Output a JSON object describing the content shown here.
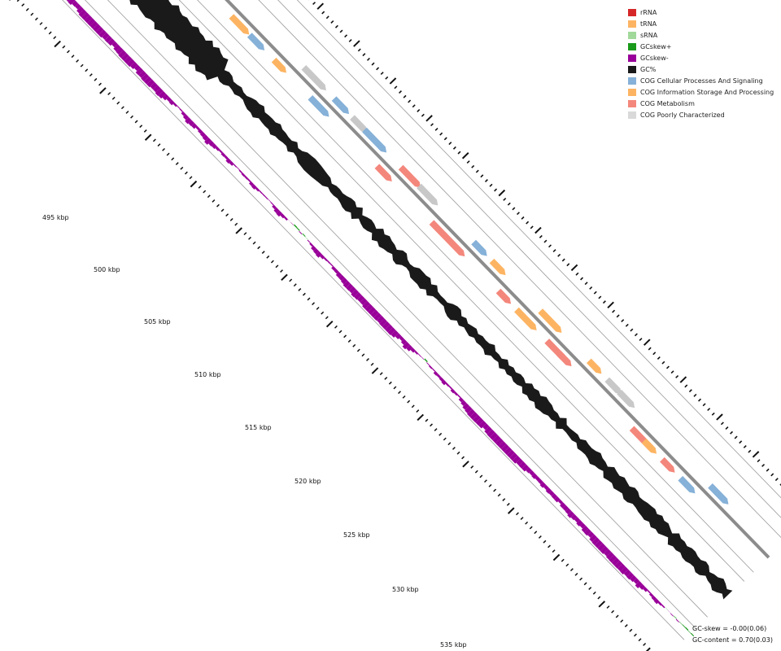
{
  "legend": [
    {
      "label": "rRNA",
      "color": "#d62728"
    },
    {
      "label": "tRNA",
      "color": "#fdb462"
    },
    {
      "label": "sRNA",
      "color": "#a1d99b"
    },
    {
      "label": "GCskew+",
      "color": "#1a9a1a"
    },
    {
      "label": "GCskew-",
      "color": "#990099"
    },
    {
      "label": "GC%",
      "color": "#1a1a1a"
    },
    {
      "label": "COG Cellular Processes And Signaling",
      "color": "#86b1d8"
    },
    {
      "label": "COG Information Storage And Processing",
      "color": "#fdb462"
    },
    {
      "label": "COG Metabolism",
      "color": "#f4877c"
    },
    {
      "label": "COG Poorly Characterized",
      "color": "#d9d9d9"
    }
  ],
  "ticks": [
    "495 kbp",
    "500 kbp",
    "505 kbp",
    "510 kbp",
    "515 kbp",
    "520 kbp",
    "525 kbp",
    "530 kbp",
    "535 kbp"
  ],
  "stats": {
    "gc_skew": "GC-skew = -0.00(0.06)",
    "gc_content": "GC-content = 0.70(0.03)"
  },
  "features": [
    {
      "pos": 0.02,
      "strand": "+",
      "cat": "Information"
    },
    {
      "pos": 0.05,
      "strand": "+",
      "cat": "Information"
    },
    {
      "pos": 0.09,
      "strand": "+",
      "cat": "Information"
    },
    {
      "pos": 0.14,
      "strand": "+",
      "cat": "Poorly"
    },
    {
      "pos": 0.18,
      "strand": "-",
      "cat": "Information"
    },
    {
      "pos": 0.21,
      "strand": "-",
      "cat": "Cellular"
    },
    {
      "pos": 0.25,
      "strand": "-",
      "cat": "Information"
    },
    {
      "pos": 0.28,
      "strand": "+",
      "cat": "Poorly"
    },
    {
      "pos": 0.31,
      "strand": "-",
      "cat": "Cellular"
    },
    {
      "pos": 0.33,
      "strand": "+",
      "cat": "Cellular"
    },
    {
      "pos": 0.36,
      "strand": "+",
      "cat": "Poorly"
    },
    {
      "pos": 0.38,
      "strand": "+",
      "cat": "Cellular"
    },
    {
      "pos": 0.42,
      "strand": "-",
      "cat": "Metabolism"
    },
    {
      "pos": 0.44,
      "strand": "+",
      "cat": "Metabolism"
    },
    {
      "pos": 0.47,
      "strand": "+",
      "cat": "Poorly"
    },
    {
      "pos": 0.51,
      "strand": "-",
      "cat": "Metabolism"
    },
    {
      "pos": 0.53,
      "strand": "-",
      "cat": "Metabolism"
    },
    {
      "pos": 0.56,
      "strand": "+",
      "cat": "Cellular"
    },
    {
      "pos": 0.59,
      "strand": "+",
      "cat": "Information"
    },
    {
      "pos": 0.62,
      "strand": "-",
      "cat": "Metabolism"
    },
    {
      "pos": 0.65,
      "strand": "-",
      "cat": "Information"
    },
    {
      "pos": 0.67,
      "strand": "+",
      "cat": "Information"
    },
    {
      "pos": 0.7,
      "strand": "-",
      "cat": "Metabolism"
    },
    {
      "pos": 0.72,
      "strand": "-",
      "cat": "Metabolism"
    },
    {
      "pos": 0.75,
      "strand": "+",
      "cat": "Information"
    },
    {
      "pos": 0.78,
      "strand": "+",
      "cat": "Poorly"
    },
    {
      "pos": 0.8,
      "strand": "+",
      "cat": "Poorly"
    },
    {
      "pos": 0.84,
      "strand": "-",
      "cat": "Metabolism"
    },
    {
      "pos": 0.86,
      "strand": "-",
      "cat": "Information"
    },
    {
      "pos": 0.89,
      "strand": "-",
      "cat": "Metabolism"
    },
    {
      "pos": 0.92,
      "strand": "-",
      "cat": "Cellular"
    },
    {
      "pos": 0.95,
      "strand": "+",
      "cat": "Cellular"
    }
  ]
}
